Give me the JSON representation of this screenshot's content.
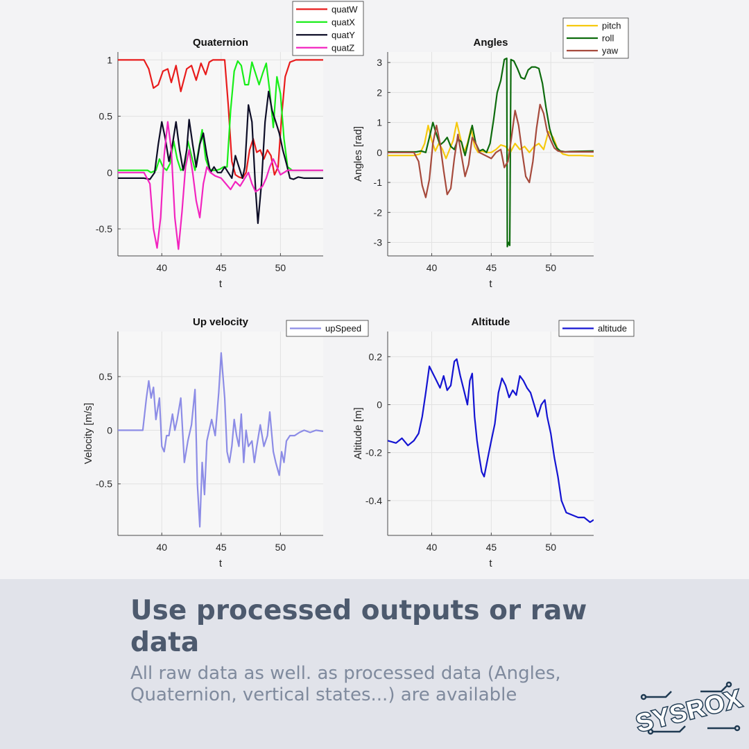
{
  "headline": "Use processed outputs or raw data",
  "subtext": "All raw data as well. as processed data (Angles, Quaternion, vertical states...) are available",
  "logo": {
    "text": "SYSROX"
  },
  "colors": {
    "page_bg": "#f3f3f5",
    "footer_bg": "#e1e3ea",
    "headline": "#4d5a6e",
    "subtext": "#7f8a9d",
    "logo": "#1f3a52"
  },
  "chart_data": [
    {
      "id": "quaternion",
      "type": "line",
      "title": "Quaternion",
      "xlabel": "t",
      "ylabel": "",
      "xlim": [
        36.3,
        53.6
      ],
      "ylim": [
        -0.74,
        1.07
      ],
      "xticks": [
        40,
        45,
        50
      ],
      "yticks": [
        1,
        0.5,
        0,
        -0.5
      ],
      "xtick_labels": [
        "40",
        "45",
        "50"
      ],
      "ytick_labels": [
        "1",
        "0.5",
        "0",
        "-0.5"
      ],
      "grid": true,
      "legend_position": "top-right-outside",
      "series": [
        {
          "name": "quatW",
          "color": "#e81c1c",
          "x": [
            36.3,
            38.5,
            38.9,
            39.3,
            39.7,
            40.1,
            40.5,
            40.8,
            41.2,
            41.6,
            42.1,
            42.5,
            42.9,
            43.3,
            43.7,
            44.0,
            44.3,
            44.7,
            45.0,
            45.3,
            45.6,
            45.9,
            46.2,
            46.5,
            46.8,
            47.1,
            47.4,
            47.7,
            48.0,
            48.3,
            48.6,
            48.9,
            49.2,
            49.5,
            49.8,
            50.1,
            50.4,
            50.8,
            51.3,
            52.0,
            53.6
          ],
          "y": [
            1.0,
            1.0,
            0.92,
            0.75,
            0.78,
            0.9,
            0.92,
            0.8,
            0.95,
            0.72,
            0.92,
            0.95,
            0.82,
            0.97,
            0.87,
            0.98,
            1.0,
            1.0,
            1.0,
            1.0,
            0.6,
            0.1,
            -0.02,
            -0.04,
            -0.05,
            0.0,
            0.2,
            0.3,
            0.18,
            0.2,
            0.12,
            0.2,
            0.15,
            -0.02,
            0.05,
            0.5,
            0.85,
            0.98,
            1.0,
            1.0,
            1.0
          ]
        },
        {
          "name": "quatX",
          "color": "#18ee18",
          "x": [
            36.3,
            38.8,
            39.1,
            39.5,
            39.8,
            40.1,
            40.4,
            40.7,
            41.0,
            41.3,
            41.6,
            41.9,
            42.2,
            42.5,
            42.8,
            43.1,
            43.4,
            43.7,
            44.0,
            44.3,
            44.6,
            44.9,
            45.2,
            45.5,
            45.8,
            46.1,
            46.4,
            46.7,
            47.0,
            47.3,
            47.6,
            47.9,
            48.2,
            48.5,
            48.8,
            49.1,
            49.4,
            49.7,
            50.0,
            50.3,
            50.6,
            51.0,
            51.5,
            53.6
          ],
          "y": [
            0.02,
            0.02,
            0.0,
            0.02,
            0.12,
            0.05,
            0.02,
            0.08,
            0.28,
            0.12,
            0.02,
            0.04,
            0.28,
            0.15,
            0.02,
            0.2,
            0.38,
            0.12,
            0.03,
            0.02,
            0.02,
            0.03,
            0.05,
            0.05,
            0.55,
            0.9,
            0.99,
            0.95,
            0.78,
            0.78,
            0.98,
            0.88,
            0.78,
            0.88,
            0.97,
            0.72,
            0.4,
            0.85,
            0.7,
            0.3,
            0.05,
            0.02,
            0.02,
            0.02
          ]
        },
        {
          "name": "quatY",
          "color": "#0d0d26",
          "x": [
            36.3,
            38.5,
            39.0,
            39.4,
            39.7,
            40.0,
            40.3,
            40.6,
            40.9,
            41.2,
            41.5,
            41.8,
            42.1,
            42.3,
            42.6,
            42.9,
            43.2,
            43.5,
            43.8,
            44.1,
            44.4,
            44.7,
            45.0,
            45.3,
            45.6,
            45.9,
            46.2,
            46.5,
            46.8,
            47.0,
            47.3,
            47.6,
            47.9,
            48.1,
            48.4,
            48.7,
            49.0,
            49.3,
            49.6,
            49.9,
            50.2,
            50.5,
            50.8,
            51.1,
            51.5,
            52.0,
            53.6
          ],
          "y": [
            -0.05,
            -0.05,
            -0.06,
            0.0,
            0.25,
            0.45,
            0.3,
            0.1,
            0.25,
            0.45,
            0.2,
            0.02,
            0.2,
            0.47,
            0.25,
            0.05,
            0.25,
            0.35,
            0.15,
            0.0,
            0.05,
            0.0,
            0.0,
            0.05,
            0.0,
            -0.05,
            0.15,
            0.05,
            -0.05,
            0.05,
            0.6,
            0.45,
            -0.15,
            -0.45,
            -0.1,
            0.45,
            0.72,
            0.55,
            0.45,
            0.35,
            0.2,
            0.08,
            -0.05,
            -0.06,
            -0.04,
            -0.05,
            -0.05
          ]
        },
        {
          "name": "quatZ",
          "color": "#f224bf",
          "x": [
            36.3,
            38.5,
            39.0,
            39.3,
            39.6,
            39.9,
            40.2,
            40.5,
            40.8,
            41.1,
            41.4,
            41.7,
            42.0,
            42.3,
            42.6,
            42.9,
            43.2,
            43.5,
            43.8,
            44.1,
            44.5,
            45.0,
            45.4,
            45.8,
            46.2,
            46.6,
            47.0,
            47.3,
            47.6,
            47.9,
            48.2,
            48.5,
            48.8,
            49.1,
            49.4,
            49.7,
            50.0,
            50.3,
            50.6,
            51.0,
            51.5,
            53.6
          ],
          "y": [
            0.0,
            0.0,
            -0.1,
            -0.5,
            -0.67,
            -0.4,
            0.15,
            0.45,
            0.2,
            -0.4,
            -0.68,
            -0.35,
            0.05,
            0.2,
            0.0,
            -0.25,
            -0.4,
            -0.1,
            0.05,
            0.0,
            -0.03,
            -0.05,
            -0.1,
            -0.15,
            -0.08,
            -0.12,
            -0.05,
            0.0,
            -0.1,
            -0.17,
            -0.15,
            -0.12,
            -0.05,
            0.05,
            0.12,
            0.05,
            -0.02,
            0.0,
            0.02,
            0.02,
            0.02,
            0.02
          ]
        }
      ]
    },
    {
      "id": "angles",
      "type": "line",
      "title": "Angles",
      "xlabel": "t",
      "ylabel": "Angles [rad]",
      "xlim": [
        36.3,
        53.6
      ],
      "ylim": [
        -3.45,
        3.35
      ],
      "xticks": [
        40,
        45,
        50
      ],
      "yticks": [
        3,
        2,
        1,
        0,
        -1,
        -2,
        -3
      ],
      "xtick_labels": [
        "40",
        "45",
        "50"
      ],
      "ytick_labels": [
        "3",
        "2",
        "1",
        "0",
        "-1",
        "-2",
        "-3"
      ],
      "grid": true,
      "legend_position": "top-right",
      "series": [
        {
          "name": "pitch",
          "color": "#f6c90e",
          "x": [
            36.3,
            38.5,
            39.0,
            39.4,
            39.7,
            40.0,
            40.3,
            40.6,
            40.9,
            41.2,
            41.5,
            41.8,
            42.1,
            42.4,
            42.7,
            43.0,
            43.3,
            43.6,
            43.9,
            44.2,
            44.6,
            45.0,
            45.4,
            45.8,
            46.2,
            46.6,
            47.0,
            47.4,
            47.8,
            48.2,
            48.6,
            49.0,
            49.4,
            49.8,
            50.2,
            50.6,
            51.0,
            51.5,
            52.5,
            53.6
          ],
          "y": [
            -0.1,
            -0.1,
            -0.05,
            0.3,
            0.9,
            0.4,
            0.05,
            0.3,
            0.1,
            -0.2,
            0.1,
            0.4,
            1.0,
            0.5,
            0.0,
            0.3,
            0.8,
            0.2,
            0.0,
            0.05,
            0.0,
            0.0,
            0.1,
            0.25,
            0.2,
            0.0,
            0.3,
            0.1,
            0.2,
            0.0,
            0.2,
            0.3,
            0.1,
            0.7,
            0.5,
            0.1,
            -0.05,
            -0.1,
            -0.1,
            -0.12
          ]
        },
        {
          "name": "roll",
          "color": "#0d6b0d",
          "x": [
            36.3,
            38.7,
            39.1,
            39.5,
            39.8,
            40.1,
            40.4,
            40.7,
            41.0,
            41.3,
            41.6,
            41.9,
            42.2,
            42.5,
            42.8,
            43.1,
            43.4,
            43.7,
            44.0,
            44.3,
            44.6,
            44.9,
            45.2,
            45.5,
            45.8,
            46.1,
            46.3,
            46.35,
            46.45,
            46.55,
            46.65,
            46.9,
            47.2,
            47.5,
            47.8,
            48.1,
            48.4,
            48.7,
            49.0,
            49.3,
            49.6,
            49.9,
            50.2,
            50.5,
            50.8,
            51.2,
            51.6,
            53.6
          ],
          "y": [
            0.02,
            0.02,
            0.05,
            0.0,
            0.5,
            1.0,
            0.6,
            0.25,
            0.35,
            0.5,
            0.2,
            0.1,
            0.45,
            0.35,
            -0.1,
            0.4,
            0.9,
            0.3,
            0.05,
            0.1,
            0.0,
            0.3,
            1.1,
            2.0,
            2.4,
            3.1,
            3.14,
            -3.14,
            -3.0,
            -3.1,
            3.1,
            3.05,
            2.8,
            2.5,
            2.45,
            2.75,
            2.85,
            2.85,
            2.8,
            2.3,
            1.5,
            0.8,
            0.4,
            0.15,
            0.05,
            0.02,
            0.03,
            0.05
          ]
        },
        {
          "name": "yaw",
          "color": "#a64a3c",
          "x": [
            36.3,
            38.5,
            38.9,
            39.2,
            39.5,
            39.8,
            40.1,
            40.4,
            40.7,
            41.0,
            41.3,
            41.6,
            41.9,
            42.2,
            42.5,
            42.8,
            43.1,
            43.4,
            43.7,
            44.0,
            44.5,
            45.0,
            45.4,
            45.8,
            46.1,
            46.4,
            46.7,
            47.0,
            47.3,
            47.6,
            47.9,
            48.2,
            48.5,
            48.8,
            49.1,
            49.4,
            49.7,
            50.0,
            50.3,
            50.6,
            51.0,
            51.5,
            53.6
          ],
          "y": [
            0.0,
            0.0,
            -0.3,
            -1.1,
            -1.5,
            -0.9,
            0.3,
            0.9,
            0.3,
            -0.6,
            -1.4,
            -1.2,
            -0.2,
            0.6,
            -0.1,
            -0.8,
            -0.4,
            0.5,
            0.3,
            0.0,
            -0.1,
            -0.2,
            0.0,
            0.1,
            -0.5,
            -0.3,
            0.5,
            1.4,
            0.9,
            0.0,
            -0.8,
            -1.0,
            -0.3,
            0.8,
            1.6,
            1.3,
            0.7,
            0.4,
            0.15,
            0.05,
            0.02,
            0.02,
            0.02
          ]
        }
      ]
    },
    {
      "id": "up-velocity",
      "type": "line",
      "title": "Up velocity",
      "xlabel": "t",
      "ylabel": "Velocity [m/s]",
      "xlim": [
        36.3,
        53.6
      ],
      "ylim": [
        -0.98,
        0.92
      ],
      "xticks": [
        40,
        45,
        50
      ],
      "yticks": [
        0.5,
        0,
        -0.5
      ],
      "xtick_labels": [
        "40",
        "45",
        "50"
      ],
      "ytick_labels": [
        "0.5",
        "0",
        "-0.5"
      ],
      "grid": true,
      "legend_position": "top-right-outside",
      "series": [
        {
          "name": "upSpeed",
          "color": "#8c8ce6",
          "x": [
            36.3,
            37.5,
            38.4,
            38.7,
            38.9,
            39.1,
            39.3,
            39.5,
            39.8,
            40.0,
            40.2,
            40.4,
            40.6,
            40.9,
            41.1,
            41.3,
            41.6,
            41.9,
            42.2,
            42.5,
            42.8,
            43.0,
            43.2,
            43.4,
            43.6,
            43.8,
            44.0,
            44.2,
            44.5,
            44.8,
            45.0,
            45.3,
            45.5,
            45.7,
            45.9,
            46.1,
            46.3,
            46.5,
            46.7,
            46.9,
            47.1,
            47.3,
            47.6,
            47.8,
            48.0,
            48.3,
            48.6,
            48.9,
            49.1,
            49.4,
            49.6,
            49.9,
            50.1,
            50.3,
            50.5,
            50.8,
            51.2,
            51.6,
            52.0,
            52.5,
            53.0,
            53.6
          ],
          "y": [
            0.0,
            0.0,
            0.0,
            0.3,
            0.46,
            0.3,
            0.4,
            0.1,
            0.3,
            -0.15,
            -0.2,
            -0.05,
            -0.05,
            0.15,
            0.0,
            0.1,
            0.3,
            -0.3,
            -0.1,
            0.05,
            0.38,
            -0.5,
            -0.9,
            -0.3,
            -0.6,
            -0.1,
            0.0,
            0.1,
            -0.05,
            0.35,
            0.72,
            0.3,
            -0.2,
            -0.3,
            -0.15,
            0.1,
            -0.05,
            -0.15,
            0.15,
            -0.3,
            0.0,
            -0.15,
            -0.1,
            -0.3,
            -0.15,
            0.05,
            -0.15,
            -0.05,
            0.17,
            -0.2,
            -0.3,
            -0.42,
            -0.2,
            -0.3,
            -0.1,
            -0.05,
            -0.05,
            -0.02,
            0.0,
            -0.02,
            0.0,
            -0.01
          ]
        }
      ]
    },
    {
      "id": "altitude",
      "type": "line",
      "title": "Altitude",
      "xlabel": "t",
      "ylabel": "Altitude [m]",
      "xlim": [
        36.3,
        53.6
      ],
      "ylim": [
        -0.545,
        0.305
      ],
      "xticks": [
        40,
        45,
        50
      ],
      "yticks": [
        0.2,
        0,
        -0.2,
        -0.4
      ],
      "xtick_labels": [
        "40",
        "45",
        "50"
      ],
      "ytick_labels": [
        "0.2",
        "0",
        "-0.2",
        "-0.4"
      ],
      "grid": true,
      "legend_position": "top-right-outside",
      "series": [
        {
          "name": "altitude",
          "color": "#1414d2",
          "x": [
            36.3,
            37.0,
            37.5,
            38.0,
            38.5,
            38.9,
            39.2,
            39.5,
            39.8,
            40.1,
            40.4,
            40.7,
            41.0,
            41.3,
            41.6,
            41.9,
            42.1,
            42.4,
            42.7,
            43.0,
            43.2,
            43.4,
            43.6,
            43.8,
            44.0,
            44.2,
            44.4,
            44.6,
            44.8,
            45.0,
            45.3,
            45.6,
            45.9,
            46.2,
            46.5,
            46.8,
            47.1,
            47.4,
            47.7,
            48.0,
            48.3,
            48.6,
            48.9,
            49.2,
            49.5,
            49.7,
            50.0,
            50.3,
            50.6,
            50.9,
            51.3,
            51.8,
            52.3,
            52.8,
            53.3,
            53.6
          ],
          "y": [
            -0.15,
            -0.16,
            -0.14,
            -0.17,
            -0.15,
            -0.12,
            -0.05,
            0.05,
            0.16,
            0.13,
            0.1,
            0.07,
            0.12,
            0.06,
            0.08,
            0.18,
            0.19,
            0.12,
            0.06,
            0.0,
            0.1,
            0.13,
            -0.05,
            -0.15,
            -0.22,
            -0.28,
            -0.3,
            -0.25,
            -0.2,
            -0.15,
            -0.08,
            0.05,
            0.11,
            0.08,
            0.03,
            0.06,
            0.04,
            0.12,
            0.1,
            0.07,
            0.05,
            0.0,
            -0.05,
            0.0,
            0.02,
            -0.05,
            -0.12,
            -0.22,
            -0.3,
            -0.4,
            -0.45,
            -0.46,
            -0.47,
            -0.47,
            -0.49,
            -0.48
          ]
        }
      ]
    }
  ]
}
